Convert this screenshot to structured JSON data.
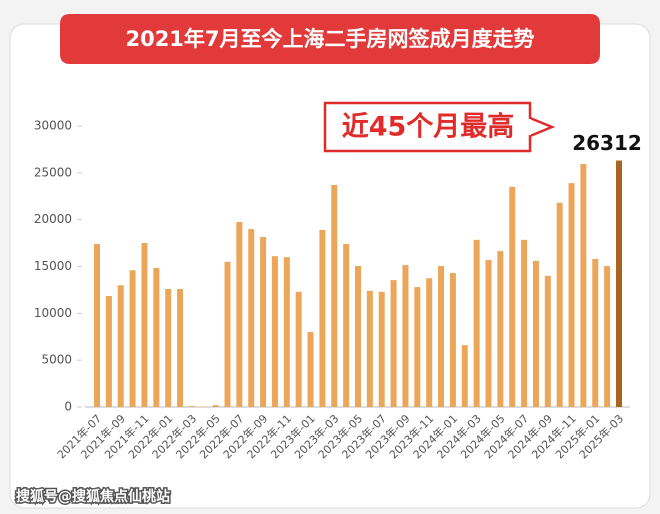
{
  "chart_data": {
    "type": "bar",
    "title": "2021年7月至今上海二手房网签成月度走势",
    "annotation": "近45个月最高",
    "watermark": "搜狐号@搜狐焦点仙桃站",
    "categories": [
      "2021年-07",
      null,
      "2021年-09",
      null,
      "2021年-11",
      null,
      "2022年-01",
      null,
      "2022年-03",
      null,
      "2022年-05",
      null,
      "2022年-07",
      null,
      "2022年-09",
      null,
      "2022年-11",
      null,
      "2023年-01",
      null,
      "2023年-03",
      null,
      "2023年-05",
      null,
      "2023年-07",
      null,
      "2023年-09",
      null,
      "2023年-11",
      null,
      "2024年-01",
      null,
      "2024年-03",
      null,
      "2024年-05",
      null,
      "2024年-07",
      null,
      "2024年-09",
      null,
      "2024年-11",
      null,
      "2025年-01",
      null,
      "2025年-03"
    ],
    "values": [
      17400,
      11850,
      13000,
      14600,
      17500,
      14850,
      12600,
      12600,
      100,
      50,
      200,
      15500,
      19750,
      19000,
      18150,
      16100,
      16000,
      12300,
      8000,
      18900,
      23700,
      17400,
      15050,
      12400,
      12300,
      13550,
      15150,
      12800,
      13750,
      15050,
      14300,
      6600,
      17850,
      15700,
      16650,
      23500,
      17850,
      15600,
      14000,
      21800,
      23900,
      25950,
      15800,
      15050,
      26312
    ],
    "color": "#eba65a",
    "highlight": {
      "index": 44,
      "color": "#a8651f"
    },
    "ylim": [
      0,
      30000
    ],
    "yticks": [
      0,
      5000,
      10000,
      15000,
      20000,
      25000,
      30000
    ]
  }
}
